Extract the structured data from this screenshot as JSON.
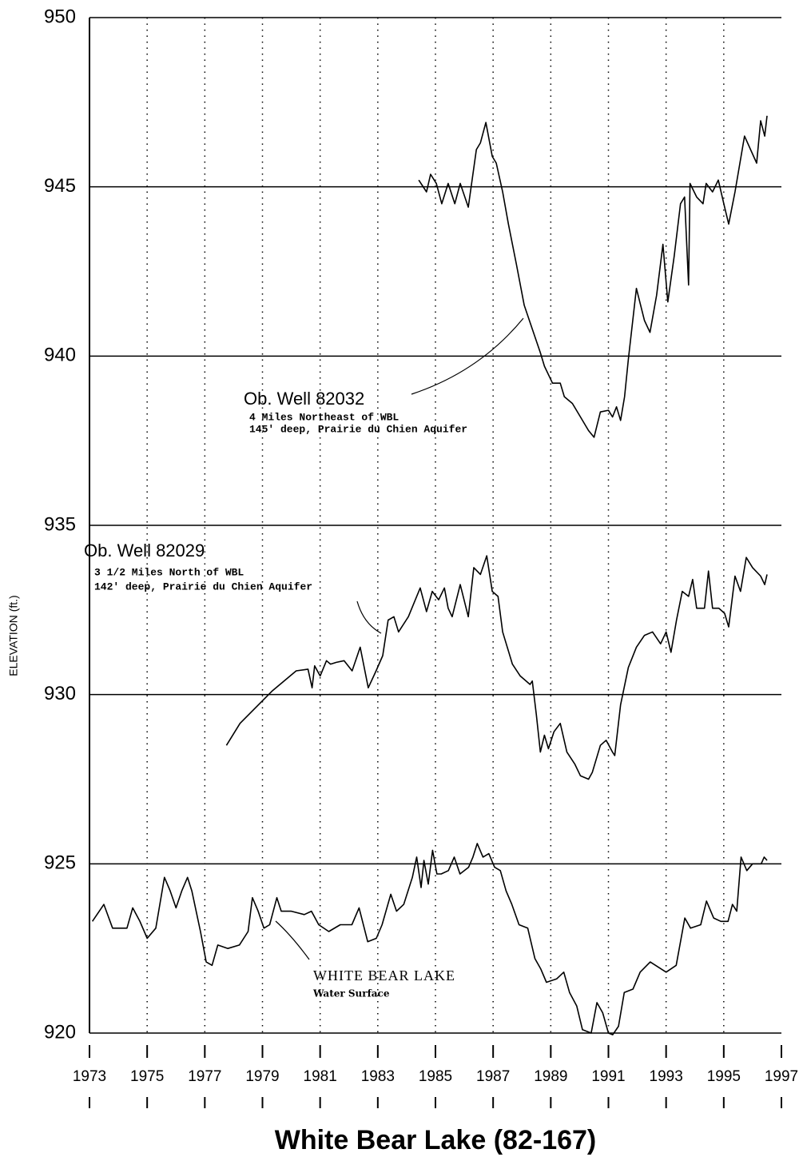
{
  "chart_data": {
    "type": "line",
    "title": "White Bear Lake (82-167)",
    "ylabel": "ELEVATION  (ft.)",
    "xlim": [
      1973,
      1997
    ],
    "xticks": [
      1973,
      1975,
      1977,
      1979,
      1981,
      1983,
      1985,
      1987,
      1989,
      1991,
      1993,
      1995,
      1997
    ],
    "ylim": [
      920,
      950
    ],
    "yticks": [
      920,
      925,
      930,
      935,
      940,
      945,
      950
    ],
    "grid": true,
    "annotations": [
      "4 Miles Northeast of WBL",
      "145' deep, Prairie du Chien Aquifer",
      "3 1/2 Miles North of WBL",
      "142' deep, Prairie du Chien Aquifer",
      "Water Surface"
    ],
    "series": [
      {
        "name": "Ob. Well 82032",
        "color": "#000000",
        "x": [
          1984.42,
          1984.69,
          1984.83,
          1985.03,
          1985.22,
          1985.44,
          1985.67,
          1985.86,
          1986.14,
          1986.42,
          1986.56,
          1986.75,
          1986.97,
          1987.11,
          1987.33,
          1987.53,
          1987.81,
          1988.08,
          1988.36,
          1988.64,
          1988.78,
          1989.06,
          1989.33,
          1989.47,
          1989.75,
          1990.03,
          1990.31,
          1990.5,
          1990.72,
          1991.0,
          1991.14,
          1991.28,
          1991.42,
          1991.56,
          1991.69,
          1991.97,
          1992.25,
          1992.44,
          1992.67,
          1992.89,
          1993.06,
          1993.28,
          1993.5,
          1993.64,
          1993.78,
          1993.83,
          1994.06,
          1994.28,
          1994.39,
          1994.61,
          1994.81,
          1995.03,
          1995.17,
          1995.39,
          1995.72,
          1996.14,
          1996.28,
          1996.42,
          1996.5
        ],
        "values": [
          945.2,
          944.85,
          945.37,
          945.1,
          944.5,
          945.1,
          944.5,
          945.1,
          944.4,
          946.1,
          946.3,
          946.9,
          945.9,
          945.7,
          944.85,
          943.9,
          942.7,
          941.5,
          940.8,
          940.1,
          939.7,
          939.2,
          939.2,
          938.8,
          938.6,
          938.2,
          937.8,
          937.6,
          938.35,
          938.4,
          938.2,
          938.5,
          938.1,
          938.8,
          939.9,
          942.0,
          941.05,
          940.7,
          941.8,
          943.3,
          941.6,
          942.95,
          944.5,
          944.7,
          942.1,
          945.1,
          944.7,
          944.5,
          945.1,
          944.85,
          945.2,
          944.4,
          943.9,
          944.85,
          946.5,
          945.7,
          946.95,
          946.5,
          947.1
        ]
      },
      {
        "name": "Ob. Well 82029",
        "color": "#000000",
        "x": [
          1977.75,
          1978.22,
          1979.33,
          1980.17,
          1980.58,
          1980.72,
          1980.81,
          1981.0,
          1981.22,
          1981.36,
          1981.56,
          1981.83,
          1982.11,
          1982.39,
          1982.67,
          1982.94,
          1983.17,
          1983.36,
          1983.56,
          1983.72,
          1984.06,
          1984.47,
          1984.69,
          1984.89,
          1985.11,
          1985.31,
          1985.44,
          1985.58,
          1985.86,
          1986.14,
          1986.33,
          1986.56,
          1986.78,
          1986.97,
          1987.17,
          1987.33,
          1987.67,
          1987.94,
          1988.28,
          1988.36,
          1988.5,
          1988.64,
          1988.78,
          1988.92,
          1989.11,
          1989.33,
          1989.56,
          1989.83,
          1990.03,
          1990.31,
          1990.44,
          1990.72,
          1990.92,
          1991.14,
          1991.22,
          1991.42,
          1991.69,
          1991.97,
          1992.25,
          1992.53,
          1992.81,
          1993.0,
          1993.17,
          1993.36,
          1993.56,
          1993.78,
          1993.92,
          1994.06,
          1994.33,
          1994.47,
          1994.61,
          1994.83,
          1995.03,
          1995.17,
          1995.39,
          1995.58,
          1995.78,
          1996.0,
          1996.28,
          1996.42,
          1996.5
        ],
        "values": [
          928.5,
          929.15,
          930.1,
          930.7,
          930.75,
          930.2,
          930.85,
          930.55,
          931.0,
          930.9,
          930.95,
          931.0,
          930.7,
          931.4,
          930.2,
          930.7,
          931.15,
          932.2,
          932.3,
          931.85,
          932.3,
          933.15,
          932.45,
          933.05,
          932.8,
          933.15,
          932.55,
          932.3,
          933.25,
          932.3,
          933.75,
          933.55,
          934.1,
          933.05,
          932.9,
          931.85,
          930.9,
          930.55,
          930.3,
          930.4,
          929.4,
          928.3,
          928.8,
          928.4,
          928.9,
          929.15,
          928.3,
          927.95,
          927.6,
          927.5,
          927.7,
          928.5,
          928.65,
          928.3,
          928.2,
          929.7,
          930.8,
          931.4,
          931.75,
          931.85,
          931.5,
          931.85,
          931.25,
          932.2,
          933.05,
          932.9,
          933.4,
          932.55,
          932.55,
          933.65,
          932.55,
          932.55,
          932.4,
          932.0,
          933.5,
          933.05,
          934.05,
          933.75,
          933.5,
          933.25,
          933.55
        ]
      },
      {
        "name": "WHITE BEAR LAKE",
        "color": "#000000",
        "x": [
          1973.1,
          1973.5,
          1973.8,
          1974.3,
          1974.5,
          1974.75,
          1975.0,
          1975.3,
          1975.6,
          1975.8,
          1976.0,
          1976.2,
          1976.4,
          1976.55,
          1976.85,
          1977.05,
          1977.25,
          1977.45,
          1977.8,
          1978.2,
          1978.5,
          1978.65,
          1978.85,
          1979.05,
          1979.25,
          1979.5,
          1979.65,
          1980.0,
          1980.45,
          1980.7,
          1980.95,
          1981.3,
          1981.7,
          1982.1,
          1982.35,
          1982.65,
          1982.95,
          1983.15,
          1983.45,
          1983.65,
          1983.9,
          1984.2,
          1984.35,
          1984.5,
          1984.6,
          1984.75,
          1984.9,
          1985.05,
          1985.2,
          1985.45,
          1985.65,
          1985.85,
          1986.15,
          1986.3,
          1986.45,
          1986.65,
          1986.85,
          1987.05,
          1987.25,
          1987.45,
          1987.65,
          1987.9,
          1988.2,
          1988.45,
          1988.65,
          1988.85,
          1989.2,
          1989.45,
          1989.65,
          1989.9,
          1990.1,
          1990.4,
          1990.6,
          1990.8,
          1991.0,
          1991.15,
          1991.35,
          1991.55,
          1991.85,
          1992.1,
          1992.45,
          1993.0,
          1993.35,
          1993.65,
          1993.85,
          1994.2,
          1994.4,
          1994.65,
          1994.9,
          1995.15,
          1995.3,
          1995.45,
          1995.6,
          1995.8,
          1996.0,
          1996.3,
          1996.4,
          1996.5
        ],
        "values": [
          923.3,
          923.8,
          923.1,
          923.1,
          923.7,
          923.3,
          922.8,
          923.1,
          924.6,
          924.2,
          923.7,
          924.2,
          924.6,
          924.2,
          923.0,
          922.1,
          922.0,
          922.6,
          922.5,
          922.6,
          923.0,
          924.0,
          923.6,
          923.1,
          923.2,
          924.0,
          923.6,
          923.6,
          923.5,
          923.6,
          923.2,
          923.0,
          923.2,
          923.2,
          923.7,
          922.7,
          922.8,
          923.2,
          924.1,
          923.6,
          923.8,
          924.6,
          925.2,
          924.3,
          925.1,
          924.4,
          925.4,
          924.7,
          924.7,
          924.8,
          925.2,
          924.7,
          924.9,
          925.2,
          925.6,
          925.2,
          925.3,
          924.9,
          924.8,
          924.2,
          923.8,
          923.2,
          923.1,
          922.2,
          921.9,
          921.5,
          921.6,
          921.8,
          921.2,
          920.8,
          920.1,
          920.0,
          920.9,
          920.6,
          920.0,
          919.95,
          920.2,
          921.2,
          921.3,
          921.8,
          922.1,
          921.8,
          922.0,
          923.4,
          923.1,
          923.2,
          923.9,
          923.4,
          923.3,
          923.3,
          923.8,
          923.6,
          925.2,
          924.8,
          925.0,
          925.0,
          925.2,
          925.1
        ]
      }
    ]
  }
}
